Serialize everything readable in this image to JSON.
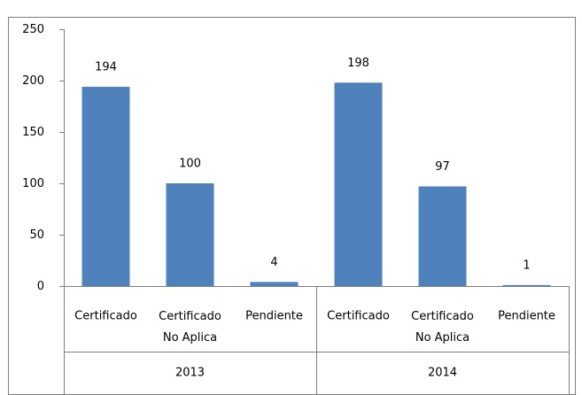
{
  "chart_data": {
    "type": "bar",
    "categories": [
      "Certificado",
      "Certificado No Aplica",
      "Pendiente",
      "Certificado",
      "Certificado No Aplica",
      "Pendiente"
    ],
    "groups": [
      "2013",
      "2014"
    ],
    "values": [
      194,
      100,
      4,
      198,
      97,
      1
    ],
    "color": "#4f81bd",
    "ylim": [
      0,
      250
    ],
    "yticks": [
      0,
      50,
      100,
      150,
      200,
      250
    ],
    "grid": false
  }
}
